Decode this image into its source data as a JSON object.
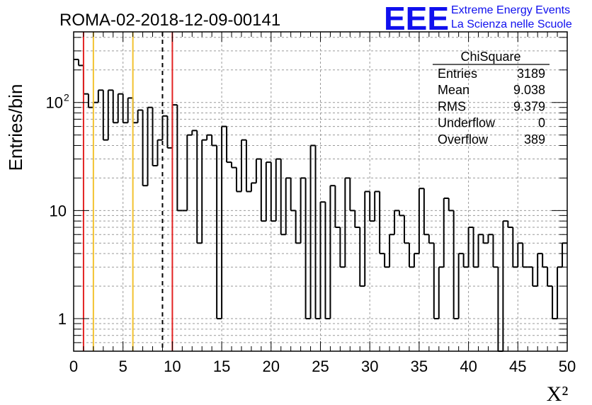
{
  "header": {
    "run_title": "ROMA-02-2018-12-09-00141",
    "logo_letters": "EEE",
    "logo_line1": "Extreme Energy Events",
    "logo_line2": "La Scienza nelle Scuole"
  },
  "stats": {
    "title": "ChiSquare",
    "rows": [
      {
        "label": "Entries",
        "value": "3189"
      },
      {
        "label": "Mean",
        "value": "9.038"
      },
      {
        "label": "RMS",
        "value": "9.379"
      },
      {
        "label": "Underflow",
        "value": "0"
      },
      {
        "label": "Overflow",
        "value": "389"
      }
    ]
  },
  "colors": {
    "histogram": "#000000",
    "red_line": "#e32222",
    "orange_line": "#f2c230",
    "dashed_line": "#000000",
    "logo": "#1010ee",
    "grid": "#9a9a9a"
  },
  "chart_data": {
    "type": "bar",
    "histogram": true,
    "xlabel": "X²",
    "ylabel": "Entries/bin",
    "xlim": [
      0,
      50
    ],
    "ylim": [
      0.5,
      450
    ],
    "yscale": "log",
    "grid": true,
    "bin_width": 0.5,
    "x_ticks": [
      "0",
      "5",
      "10",
      "15",
      "20",
      "25",
      "30",
      "35",
      "40",
      "45",
      "50"
    ],
    "y_ticks": [
      {
        "value": 1,
        "label": "1"
      },
      {
        "value": 10,
        "label": "10"
      },
      {
        "value": 100,
        "label": "10",
        "exponent": "2"
      }
    ],
    "values": [
      250,
      220,
      120,
      90,
      100,
      130,
      45,
      130,
      65,
      120,
      65,
      110,
      65,
      85,
      17,
      90,
      26,
      45,
      75,
      38,
      95,
      10,
      10,
      50,
      55,
      5,
      45,
      50,
      40,
      1,
      60,
      28,
      25,
      15,
      45,
      15,
      18,
      30,
      8,
      28,
      8,
      30,
      6,
      20,
      10,
      5,
      20,
      1,
      40,
      1,
      12,
      1,
      17,
      7,
      3,
      20,
      10,
      7,
      2,
      15,
      8,
      15,
      4,
      3,
      6,
      10,
      9,
      5,
      3,
      4,
      16,
      6,
      5,
      1,
      3,
      13,
      10,
      1,
      4,
      3,
      7,
      3,
      6,
      5,
      6,
      3,
      0,
      8,
      7,
      3,
      5,
      3,
      3,
      2,
      4,
      3,
      2,
      1,
      3,
      5
    ],
    "vertical_lines": [
      {
        "x": 1,
        "color": "red",
        "style": "solid"
      },
      {
        "x": 2,
        "color": "orange",
        "style": "solid"
      },
      {
        "x": 6,
        "color": "orange",
        "style": "solid"
      },
      {
        "x": 9,
        "color": "black",
        "style": "dashed"
      },
      {
        "x": 10,
        "color": "red",
        "style": "solid"
      }
    ]
  }
}
